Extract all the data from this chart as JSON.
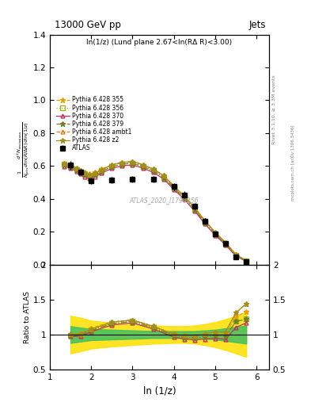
{
  "title_left": "13000 GeV pp",
  "title_right": "Jets",
  "subtitle": "ln(1/z) (Lund plane 2.67<ln(RΔ R)<3.00)",
  "ylabel_main": "$\\frac{1}{N_{\\mathrm{jets}}}\\frac{d^2 N_{\\mathrm{emissions}}}{d\\ln(R/\\Delta R)\\,d\\ln(1/z)}$",
  "ylabel_ratio": "Ratio to ATLAS",
  "xlabel": "ln (1/z)",
  "watermark": "ATLAS_2020_I1790256",
  "right_label1": "Rivet 3.1.10, ≥ 3.3M events",
  "right_label2": "mcplots.cern.ch [arXiv:1306.3436]",
  "atlas_x": [
    1.5,
    1.75,
    2.0,
    2.5,
    3.0,
    3.5,
    4.0,
    4.25,
    4.5,
    4.75,
    5.0,
    5.25,
    5.5,
    5.75
  ],
  "atlas_y": [
    0.605,
    0.565,
    0.51,
    0.515,
    0.52,
    0.52,
    0.475,
    0.425,
    0.355,
    0.265,
    0.19,
    0.13,
    0.048,
    0.018
  ],
  "atlas_yerr": [
    0.025,
    0.02,
    0.018,
    0.018,
    0.018,
    0.018,
    0.02,
    0.022,
    0.022,
    0.018,
    0.014,
    0.01,
    0.006,
    0.004
  ],
  "mc_x": [
    1.35,
    1.5,
    1.65,
    1.75,
    1.85,
    1.95,
    2.1,
    2.25,
    2.5,
    2.75,
    3.0,
    3.25,
    3.5,
    3.75,
    4.0,
    4.25,
    4.5,
    4.75,
    5.0,
    5.25,
    5.5,
    5.75
  ],
  "series": [
    {
      "label": "Pythia 6.428 355",
      "color": "#e8a000",
      "linestyle": "--",
      "marker": "*",
      "y": [
        0.615,
        0.605,
        0.585,
        0.575,
        0.563,
        0.553,
        0.563,
        0.583,
        0.608,
        0.622,
        0.628,
        0.608,
        0.582,
        0.542,
        0.478,
        0.418,
        0.348,
        0.268,
        0.194,
        0.132,
        0.06,
        0.024
      ]
    },
    {
      "label": "Pythia 6.428 356",
      "color": "#a0b020",
      "linestyle": ":",
      "marker": "s",
      "y": [
        0.61,
        0.598,
        0.578,
        0.563,
        0.548,
        0.538,
        0.548,
        0.568,
        0.596,
        0.612,
        0.618,
        0.598,
        0.572,
        0.532,
        0.468,
        0.408,
        0.338,
        0.258,
        0.187,
        0.127,
        0.057,
        0.022
      ]
    },
    {
      "label": "Pythia 6.428 370",
      "color": "#c03060",
      "linestyle": "-",
      "marker": "^",
      "y": [
        0.598,
        0.588,
        0.568,
        0.552,
        0.537,
        0.527,
        0.537,
        0.557,
        0.586,
        0.602,
        0.607,
        0.588,
        0.562,
        0.522,
        0.458,
        0.398,
        0.328,
        0.248,
        0.18,
        0.121,
        0.053,
        0.021
      ]
    },
    {
      "label": "Pythia 6.428 379",
      "color": "#708020",
      "linestyle": "-.",
      "marker": "*",
      "y": [
        0.608,
        0.598,
        0.578,
        0.562,
        0.547,
        0.537,
        0.547,
        0.567,
        0.596,
        0.612,
        0.617,
        0.597,
        0.572,
        0.532,
        0.467,
        0.407,
        0.337,
        0.257,
        0.187,
        0.127,
        0.057,
        0.022
      ]
    },
    {
      "label": "Pythia 6.428 ambt1",
      "color": "#e08020",
      "linestyle": "--",
      "marker": "^",
      "y": [
        0.618,
        0.608,
        0.588,
        0.572,
        0.557,
        0.547,
        0.557,
        0.577,
        0.607,
        0.622,
        0.628,
        0.608,
        0.582,
        0.542,
        0.478,
        0.418,
        0.348,
        0.268,
        0.197,
        0.135,
        0.063,
        0.026
      ]
    },
    {
      "label": "Pythia 6.428 z2",
      "color": "#a09020",
      "linestyle": "-",
      "marker": "*",
      "y": [
        0.618,
        0.608,
        0.588,
        0.572,
        0.557,
        0.547,
        0.557,
        0.577,
        0.607,
        0.622,
        0.628,
        0.608,
        0.582,
        0.542,
        0.478,
        0.418,
        0.348,
        0.268,
        0.197,
        0.135,
        0.063,
        0.026
      ]
    }
  ],
  "band_x": [
    1.5,
    1.75,
    2.0,
    2.5,
    3.0,
    3.5,
    4.0,
    4.25,
    4.5,
    4.75,
    5.0,
    5.25,
    5.5,
    5.75
  ],
  "band_green_lo": [
    0.88,
    0.9,
    0.92,
    0.93,
    0.94,
    0.95,
    0.95,
    0.95,
    0.95,
    0.94,
    0.93,
    0.91,
    0.89,
    0.87
  ],
  "band_green_hi": [
    1.12,
    1.1,
    1.08,
    1.07,
    1.06,
    1.05,
    1.05,
    1.05,
    1.05,
    1.06,
    1.07,
    1.09,
    1.11,
    1.13
  ],
  "band_yellow_lo": [
    0.73,
    0.76,
    0.8,
    0.83,
    0.85,
    0.87,
    0.88,
    0.88,
    0.87,
    0.85,
    0.82,
    0.78,
    0.73,
    0.68
  ],
  "band_yellow_hi": [
    1.27,
    1.24,
    1.2,
    1.17,
    1.15,
    1.13,
    1.12,
    1.12,
    1.13,
    1.15,
    1.18,
    1.22,
    1.27,
    1.32
  ],
  "ylim_main": [
    0.0,
    1.4
  ],
  "ylim_ratio": [
    0.5,
    2.0
  ],
  "xlim": [
    1.0,
    6.3
  ],
  "xticks": [
    1,
    2,
    3,
    4,
    5,
    6
  ],
  "yticks_main": [
    0.0,
    0.2,
    0.4,
    0.6,
    0.8,
    1.0,
    1.2,
    1.4
  ],
  "yticks_ratio": [
    0.5,
    1.0,
    1.5,
    2.0
  ]
}
